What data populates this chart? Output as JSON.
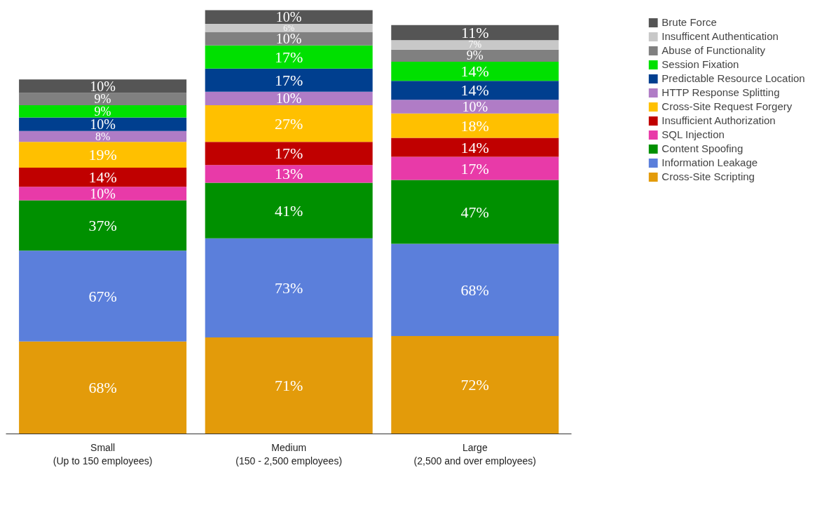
{
  "chart_data": {
    "type": "bar",
    "stacked": true,
    "legend": "right",
    "grid": false,
    "categories": [
      "Small\n(Up to 150 employees)",
      "Medium\n(150 - 2,500 employees)",
      "Large\n(2,500 and over employees)"
    ],
    "series": [
      {
        "name": "Cross-Site Scripting",
        "color": "#e39b0a",
        "values": [
          68,
          71,
          72
        ],
        "value_labels": [
          "68%",
          "71%",
          "72%"
        ]
      },
      {
        "name": "Information Leakage",
        "color": "#5b7fdb",
        "values": [
          67,
          73,
          68
        ],
        "value_labels": [
          "67%",
          "73%",
          "68%"
        ]
      },
      {
        "name": "Content Spoofing",
        "color": "#009000",
        "values": [
          37,
          41,
          47
        ],
        "value_labels": [
          "37%",
          "41%",
          "47%"
        ]
      },
      {
        "name": "SQL Injection",
        "color": "#e83aa8",
        "values": [
          10,
          13,
          17
        ],
        "value_labels": [
          "10%",
          "13%",
          "17%"
        ]
      },
      {
        "name": "Insufficient Authorization",
        "color": "#c00000",
        "values": [
          14,
          17,
          14
        ],
        "value_labels": [
          "14%",
          "17%",
          "14%"
        ]
      },
      {
        "name": "Cross-Site Request Forgery",
        "color": "#ffc000",
        "values": [
          19,
          27,
          18
        ],
        "value_labels": [
          "19%",
          "27%",
          "18%"
        ]
      },
      {
        "name": "HTTP Response Splitting",
        "color": "#b07cc6",
        "values": [
          8,
          10,
          10
        ],
        "value_labels": [
          "8%",
          "10%",
          "10%"
        ]
      },
      {
        "name": "Predictable Resource Location",
        "color": "#003f8f",
        "values": [
          10,
          17,
          14
        ],
        "value_labels": [
          "10%",
          "17%",
          "14%"
        ]
      },
      {
        "name": "Session Fixation",
        "color": "#00e000",
        "values": [
          9,
          17,
          14
        ],
        "value_labels": [
          "9%",
          "17%",
          "14%"
        ]
      },
      {
        "name": "Abuse of Functionality",
        "color": "#808080",
        "values": [
          9,
          10,
          9
        ],
        "value_labels": [
          "9%",
          "10%",
          "9%"
        ]
      },
      {
        "name": "Insufficent Authentication",
        "color": "#c8c8c8",
        "values": [
          null,
          6,
          7
        ],
        "value_labels": [
          null,
          "6%",
          "7%"
        ]
      },
      {
        "name": "Brute Force",
        "color": "#555555",
        "values": [
          10,
          10,
          11
        ],
        "value_labels": [
          "10%",
          "10%",
          "11%"
        ]
      }
    ]
  }
}
